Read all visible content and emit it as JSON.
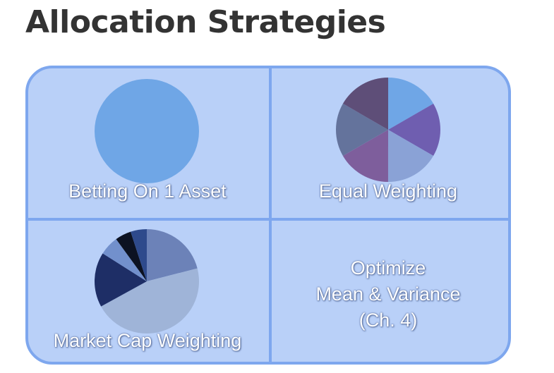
{
  "title": "Allocation Strategies",
  "quadrants": {
    "top_left": {
      "label": "Betting On 1 Asset",
      "slices": [
        {
          "share": 1.0,
          "color": "#6fa6e6"
        }
      ]
    },
    "top_right": {
      "label": "Equal Weighting",
      "slices": [
        {
          "share": 0.1667,
          "color": "#6fa6e6"
        },
        {
          "share": 0.1667,
          "color": "#6f5eb0"
        },
        {
          "share": 0.1667,
          "color": "#8aa2d6"
        },
        {
          "share": 0.1667,
          "color": "#7e5e9c"
        },
        {
          "share": 0.1667,
          "color": "#64739c"
        },
        {
          "share": 0.1666,
          "color": "#5e4e78"
        }
      ]
    },
    "bottom_left": {
      "label": "Market Cap Weighting",
      "slices": [
        {
          "share": 0.21,
          "color": "#6c82b8"
        },
        {
          "share": 0.46,
          "color": "#9fb4d8"
        },
        {
          "share": 0.17,
          "color": "#1e2e66"
        },
        {
          "share": 0.06,
          "color": "#7290cc"
        },
        {
          "share": 0.05,
          "color": "#0c1222"
        },
        {
          "share": 0.05,
          "color": "#2e4a8c"
        }
      ]
    },
    "bottom_right": {
      "lines": [
        "Optimize",
        "Mean & Variance",
        "(Ch. 4)"
      ]
    }
  }
}
